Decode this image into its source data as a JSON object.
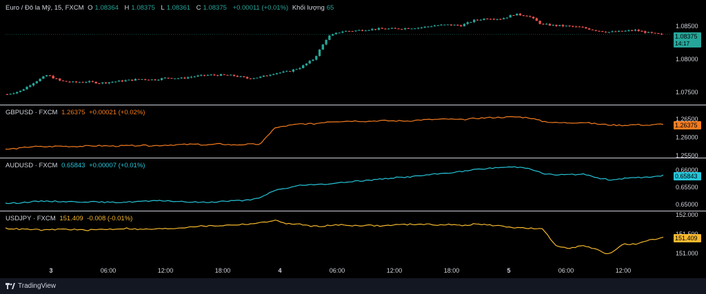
{
  "main_legend": {
    "title": "Euro / Đô la Mỹ, 15, FXCM",
    "o_label": "O",
    "o": "1.08364",
    "h_label": "H",
    "h": "1.08375",
    "l_label": "L",
    "l": "1.08361",
    "c_label": "C",
    "c": "1.08375",
    "change": "+0.00011 (+0.01%)",
    "volume_label": "Khối lượng",
    "volume": "65"
  },
  "main_axis": {
    "ticks": [
      "1.08500",
      "1.08000",
      "1.07500"
    ],
    "price_tag": "1.08375",
    "countdown": "14:17"
  },
  "panes": [
    {
      "symbol": "GBPUSD · FXCM",
      "value": "1.26375",
      "change": "+0.00021 (+0.02%)",
      "color": "#f57c20",
      "ticks": [
        "1.26500",
        "1.26000",
        "1.25500"
      ],
      "price_tag": "1.26375"
    },
    {
      "symbol": "AUDUSD · FXCM",
      "value": "0.65843",
      "change": "+0.00007 (+0.01%)",
      "color": "#26c6da",
      "ticks": [
        "0.66000",
        "0.65500",
        "0.65000"
      ],
      "price_tag": "0.65843"
    },
    {
      "symbol": "USDJPY · FXCM",
      "value": "151.409",
      "change": "-0.008 (-0.01%)",
      "color": "#f5b82e",
      "ticks": [
        "152.000",
        "151.500",
        "151.000"
      ],
      "price_tag": "151.409"
    }
  ],
  "time_axis": [
    "3",
    "06:00",
    "12:00",
    "18:00",
    "4",
    "06:00",
    "12:00",
    "18:00",
    "5",
    "06:00",
    "12:00"
  ],
  "footer": {
    "brand": "TradingView"
  },
  "colors": {
    "up": "#26a69a",
    "down": "#ef5350",
    "text": "#d1d4dc"
  },
  "chart_data": [
    {
      "type": "candlestick",
      "title": "Euro / Đô la Mỹ, 15, FXCM",
      "series": [
        {
          "name": "EURUSD",
          "values": [
            1.0747,
            1.0752,
            1.0765,
            1.0776,
            1.0767,
            1.0765,
            1.0766,
            1.0764,
            1.0766,
            1.0768,
            1.077,
            1.0769,
            1.0772,
            1.0771,
            1.0774,
            1.0776,
            1.0776,
            1.0775,
            1.0771,
            1.0773,
            1.0779,
            1.0781,
            1.0788,
            1.0801,
            1.0834,
            1.0842,
            1.0843,
            1.0845,
            1.0846,
            1.0846,
            1.0847,
            1.0848,
            1.0851,
            1.0852,
            1.0851,
            1.0859,
            1.0862,
            1.0861,
            1.0868,
            1.0866,
            1.0853,
            1.0851,
            1.085,
            1.0848,
            1.0844,
            1.0841,
            1.0842,
            1.0844,
            1.084,
            1.0837
          ]
        }
      ],
      "yaxis_ticks": [
        "1.08500",
        "1.08000",
        "1.07500"
      ],
      "last": "1.08375"
    },
    {
      "type": "line",
      "series": [
        {
          "name": "GBPUSD · FXCM",
          "values": [
            1.2567,
            1.257,
            1.2575,
            1.2574,
            1.2576,
            1.2575,
            1.2576,
            1.2577,
            1.2576,
            1.2577,
            1.2578,
            1.2577,
            1.2579,
            1.258,
            1.2581,
            1.2579,
            1.2582,
            1.2579,
            1.2581,
            1.2581,
            1.2625,
            1.2632,
            1.2637,
            1.2637,
            1.2643,
            1.2644,
            1.2645,
            1.2644,
            1.2646,
            1.2645,
            1.2645,
            1.2648,
            1.2649,
            1.265,
            1.2648,
            1.2652,
            1.2654,
            1.2655,
            1.2656,
            1.2654,
            1.2644,
            1.264,
            1.264,
            1.2641,
            1.2637,
            1.2634,
            1.2633,
            1.2635,
            1.2633,
            1.2637
          ]
        }
      ],
      "yaxis_ticks": [
        "1.26500",
        "1.26000",
        "1.25500"
      ],
      "last": "1.26375"
    },
    {
      "type": "line",
      "series": [
        {
          "name": "AUDUSD · FXCM",
          "values": [
            0.6503,
            0.6505,
            0.6508,
            0.651,
            0.6509,
            0.6508,
            0.6508,
            0.6507,
            0.6506,
            0.6507,
            0.6509,
            0.651,
            0.6511,
            0.6508,
            0.6507,
            0.6506,
            0.6509,
            0.6511,
            0.6512,
            0.6519,
            0.6541,
            0.6548,
            0.6556,
            0.6557,
            0.656,
            0.6563,
            0.6568,
            0.657,
            0.6574,
            0.6578,
            0.658,
            0.6584,
            0.6588,
            0.6592,
            0.6596,
            0.6601,
            0.6605,
            0.6608,
            0.6609,
            0.6606,
            0.659,
            0.6586,
            0.6587,
            0.6588,
            0.6578,
            0.6572,
            0.6575,
            0.6578,
            0.658,
            0.6584
          ]
        }
      ],
      "yaxis_ticks": [
        "0.66000",
        "0.65500",
        "0.65000"
      ],
      "last": "0.65843"
    },
    {
      "type": "line",
      "series": [
        {
          "name": "USDJPY · FXCM",
          "values": [
            151.65,
            151.63,
            151.62,
            151.6,
            151.63,
            151.62,
            151.6,
            151.62,
            151.63,
            151.65,
            151.62,
            151.63,
            151.64,
            151.66,
            151.7,
            151.71,
            151.72,
            151.74,
            151.76,
            151.79,
            151.86,
            151.77,
            151.75,
            151.7,
            151.72,
            151.74,
            151.72,
            151.73,
            151.71,
            151.74,
            151.75,
            151.76,
            151.74,
            151.75,
            151.72,
            151.76,
            151.74,
            151.7,
            151.67,
            151.65,
            151.63,
            151.2,
            151.14,
            151.2,
            151.1,
            150.97,
            151.25,
            151.23,
            151.34,
            151.41
          ]
        }
      ],
      "yaxis_ticks": [
        "152.000",
        "151.500",
        "151.000"
      ],
      "last": "151.409"
    }
  ]
}
